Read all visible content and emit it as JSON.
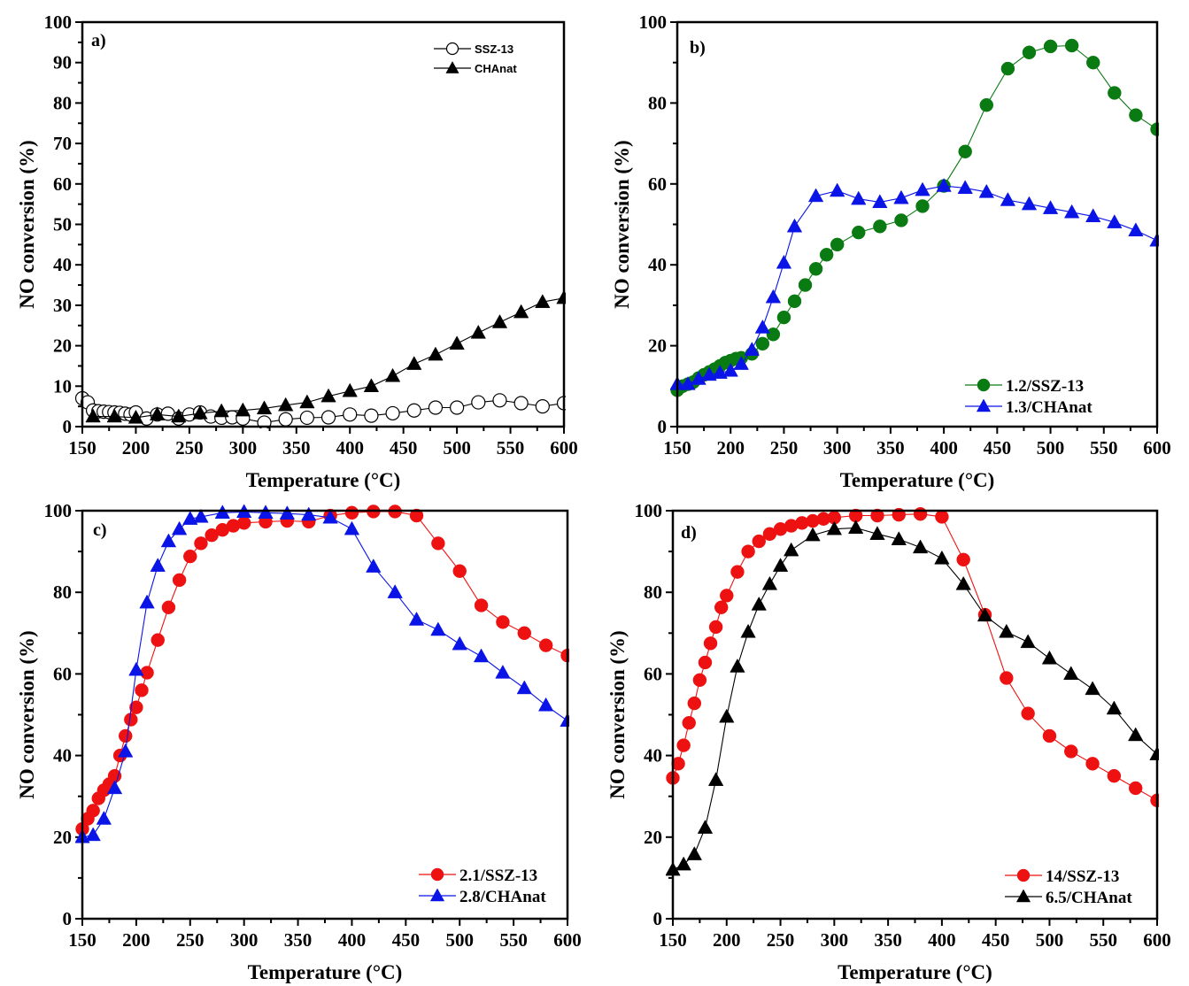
{
  "chart_data": [
    {
      "type": "line",
      "panel_label": "a)",
      "title": "",
      "xlabel": "Temperature (°C)",
      "ylabel": "NO conversion (%)",
      "xlim": [
        150,
        600
      ],
      "ylim": [
        0,
        100
      ],
      "xticks": [
        150,
        200,
        250,
        300,
        350,
        400,
        450,
        500,
        550,
        600
      ],
      "yticks": [
        0,
        10,
        20,
        30,
        40,
        50,
        60,
        70,
        80,
        90,
        100
      ],
      "grid": false,
      "legend_position": "top-right",
      "series": [
        {
          "name": "SSZ-13",
          "color": "#000000",
          "marker": "circle-open",
          "x": [
            150,
            155,
            160,
            165,
            170,
            175,
            180,
            185,
            190,
            195,
            200,
            210,
            220,
            230,
            240,
            250,
            260,
            270,
            280,
            290,
            300,
            320,
            340,
            360,
            380,
            400,
            420,
            440,
            460,
            480,
            500,
            520,
            540,
            560,
            580,
            600
          ],
          "y": [
            7.0,
            6.0,
            4.0,
            3.8,
            3.7,
            3.6,
            3.5,
            3.4,
            3.2,
            3.0,
            3.5,
            2.0,
            3.0,
            3.2,
            2.0,
            3.0,
            3.5,
            2.5,
            2.2,
            2.3,
            2.0,
            1.0,
            1.8,
            2.2,
            2.3,
            3.0,
            2.7,
            3.3,
            4.0,
            4.7,
            4.7,
            6.0,
            6.5,
            5.8,
            5.0,
            5.8
          ]
        },
        {
          "name": "CHAnat",
          "color": "#000000",
          "marker": "triangle-filled",
          "x": [
            160,
            180,
            200,
            220,
            240,
            260,
            280,
            300,
            320,
            340,
            360,
            380,
            400,
            420,
            440,
            460,
            480,
            500,
            520,
            540,
            560,
            580,
            600
          ],
          "y": [
            2.5,
            2.5,
            2.2,
            3.0,
            2.5,
            3.3,
            3.8,
            4.0,
            4.5,
            5.3,
            6.0,
            7.5,
            8.8,
            10.0,
            12.5,
            15.5,
            17.8,
            20.5,
            23.2,
            25.8,
            28.3,
            30.8,
            31.8
          ]
        }
      ]
    },
    {
      "type": "line",
      "panel_label": "b)",
      "title": "",
      "xlabel": "Temperature (°C)",
      "ylabel": "NO conversion (%)",
      "xlim": [
        150,
        600
      ],
      "ylim": [
        0,
        100
      ],
      "xticks": [
        150,
        200,
        250,
        300,
        350,
        400,
        450,
        500,
        550,
        600
      ],
      "yticks": [
        0,
        20,
        40,
        60,
        80,
        100
      ],
      "grid": false,
      "legend_position": "bottom-right",
      "series": [
        {
          "name": "1.2/SSZ-13",
          "color": "#0a7a12",
          "marker": "circle-filled",
          "x": [
            150,
            155,
            160,
            165,
            170,
            175,
            180,
            185,
            190,
            195,
            200,
            205,
            210,
            220,
            230,
            240,
            250,
            260,
            270,
            280,
            290,
            300,
            320,
            340,
            360,
            380,
            400,
            420,
            440,
            460,
            480,
            500,
            520,
            540,
            560,
            580,
            600
          ],
          "y": [
            9.0,
            10.0,
            10.5,
            11.0,
            12.0,
            12.8,
            13.5,
            14.2,
            15.0,
            15.8,
            16.3,
            16.8,
            17.0,
            18.0,
            20.5,
            22.8,
            27.0,
            31.0,
            35.0,
            39.0,
            42.5,
            45.0,
            48.0,
            49.5,
            51.0,
            54.5,
            59.5,
            68.0,
            79.5,
            88.5,
            92.5,
            94.0,
            94.2,
            90.0,
            82.5,
            77.0,
            73.5
          ]
        },
        {
          "name": "1.3/CHAnat",
          "color": "#0a14e6",
          "marker": "triangle-filled",
          "x": [
            150,
            160,
            170,
            180,
            190,
            200,
            210,
            220,
            230,
            240,
            250,
            260,
            280,
            300,
            320,
            340,
            360,
            380,
            400,
            420,
            440,
            460,
            480,
            500,
            520,
            540,
            560,
            580,
            600
          ],
          "y": [
            10.5,
            10.5,
            11.8,
            12.8,
            13.3,
            13.8,
            15.5,
            19.0,
            24.5,
            32.0,
            40.5,
            49.5,
            57.0,
            58.3,
            56.3,
            55.5,
            56.5,
            58.5,
            59.5,
            59.0,
            58.0,
            56.0,
            55.0,
            54.0,
            53.0,
            52.0,
            50.5,
            48.5,
            46.0
          ]
        }
      ]
    },
    {
      "type": "line",
      "panel_label": "c)",
      "title": "",
      "xlabel": "Temperature (°C)",
      "ylabel": "NO conversion (%)",
      "xlim": [
        150,
        600
      ],
      "ylim": [
        0,
        100
      ],
      "xticks": [
        150,
        200,
        250,
        300,
        350,
        400,
        450,
        500,
        550,
        600
      ],
      "yticks": [
        0,
        20,
        40,
        60,
        80,
        100
      ],
      "grid": false,
      "legend_position": "bottom-right",
      "series": [
        {
          "name": "2.1/SSZ-13",
          "color": "#ee1111",
          "marker": "circle-filled",
          "x": [
            150,
            155,
            160,
            165,
            170,
            175,
            180,
            185,
            190,
            195,
            200,
            205,
            210,
            220,
            230,
            240,
            250,
            260,
            270,
            280,
            290,
            300,
            320,
            340,
            360,
            380,
            400,
            420,
            440,
            460,
            480,
            500,
            520,
            540,
            560,
            580,
            600
          ],
          "y": [
            22.0,
            24.5,
            26.5,
            29.5,
            31.5,
            33.0,
            35.0,
            40.0,
            44.8,
            48.8,
            51.8,
            56.0,
            60.3,
            68.3,
            76.3,
            83.0,
            88.8,
            92.0,
            94.0,
            95.3,
            96.3,
            97.0,
            97.3,
            97.5,
            97.3,
            98.8,
            99.5,
            99.8,
            99.8,
            98.8,
            92.0,
            85.2,
            76.8,
            72.7,
            70.0,
            67.0,
            64.5
          ]
        },
        {
          "name": "2.8/CHAnat",
          "color": "#0a14e6",
          "marker": "triangle-filled",
          "x": [
            150,
            160,
            170,
            180,
            190,
            200,
            210,
            220,
            230,
            240,
            250,
            260,
            280,
            300,
            320,
            340,
            360,
            380,
            400,
            420,
            440,
            460,
            480,
            500,
            520,
            540,
            560,
            580,
            600
          ],
          "y": [
            20.0,
            20.5,
            24.5,
            32.0,
            41.0,
            61.0,
            77.5,
            86.5,
            92.5,
            95.5,
            98.0,
            98.5,
            99.5,
            99.7,
            99.5,
            99.3,
            99.0,
            98.3,
            95.5,
            86.3,
            80.0,
            73.3,
            70.8,
            67.3,
            64.3,
            60.3,
            56.5,
            52.3,
            48.5
          ]
        }
      ]
    },
    {
      "type": "line",
      "panel_label": "d)",
      "title": "",
      "xlabel": "Temperature (°C)",
      "ylabel": "NO conversion (%)",
      "xlim": [
        150,
        600
      ],
      "ylim": [
        0,
        100
      ],
      "xticks": [
        150,
        200,
        250,
        300,
        350,
        400,
        450,
        500,
        550,
        600
      ],
      "yticks": [
        0,
        20,
        40,
        60,
        80,
        100
      ],
      "grid": false,
      "legend_position": "bottom-right",
      "series": [
        {
          "name": "14/SSZ-13",
          "color": "#ee1111",
          "marker": "circle-filled",
          "x": [
            150,
            155,
            160,
            165,
            170,
            175,
            180,
            185,
            190,
            195,
            200,
            210,
            220,
            230,
            240,
            250,
            260,
            270,
            280,
            290,
            300,
            320,
            340,
            360,
            380,
            400,
            420,
            440,
            460,
            480,
            500,
            520,
            540,
            560,
            580,
            600
          ],
          "y": [
            34.5,
            38.0,
            42.5,
            48.0,
            52.8,
            58.5,
            62.8,
            67.5,
            71.5,
            76.3,
            79.2,
            85.0,
            90.0,
            92.5,
            94.3,
            95.5,
            96.3,
            97.0,
            97.5,
            98.0,
            98.3,
            98.8,
            98.8,
            99.0,
            99.2,
            98.5,
            88.0,
            74.5,
            59.0,
            50.3,
            44.8,
            41.0,
            38.0,
            35.0,
            32.0,
            29.0
          ]
        },
        {
          "name": "6.5/CHAnat",
          "color": "#000000",
          "marker": "triangle-filled",
          "x": [
            150,
            160,
            170,
            180,
            190,
            200,
            210,
            220,
            230,
            240,
            250,
            260,
            280,
            300,
            320,
            340,
            360,
            380,
            400,
            420,
            440,
            460,
            480,
            500,
            520,
            540,
            560,
            580,
            600
          ],
          "y": [
            12.0,
            13.3,
            15.8,
            22.3,
            34.0,
            49.5,
            61.8,
            70.3,
            77.0,
            82.0,
            86.5,
            90.3,
            94.0,
            95.5,
            95.8,
            94.3,
            93.0,
            91.0,
            88.3,
            82.0,
            74.3,
            70.3,
            67.8,
            63.8,
            60.0,
            56.3,
            51.5,
            45.0,
            40.3
          ]
        }
      ]
    }
  ]
}
